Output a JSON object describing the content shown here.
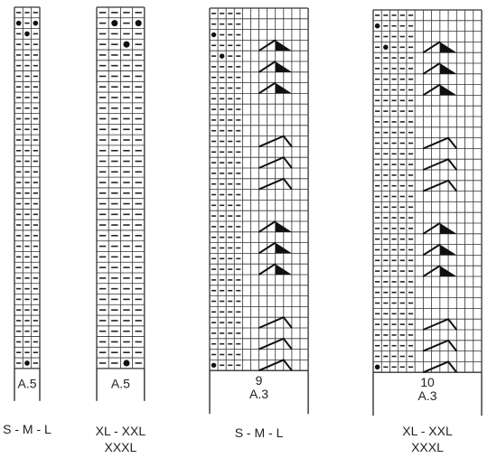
{
  "charts": [
    {
      "id": "c1",
      "cols": 3,
      "rows": 34,
      "dots": [
        [
          1,
          0
        ],
        [
          1,
          2
        ],
        [
          2,
          1
        ],
        [
          33,
          1
        ]
      ],
      "decs": [],
      "legend_lines": [
        "A.5"
      ],
      "size_lines": [
        "S - M - L"
      ]
    },
    {
      "id": "c2",
      "cols": 4,
      "rows": 34,
      "dots": [
        [
          1,
          1
        ],
        [
          1,
          3
        ],
        [
          3,
          2
        ],
        [
          33,
          2
        ]
      ],
      "decs": [],
      "legend_lines": [
        "A.5"
      ],
      "size_lines": [
        "XL - XXL",
        "XXXL"
      ]
    },
    {
      "id": "c3",
      "cols": 12,
      "rows": 34,
      "dots": [
        [
          2,
          0
        ],
        [
          4,
          1
        ],
        [
          33,
          0
        ]
      ],
      "decs": [
        [
          4,
          "left"
        ],
        [
          6,
          "left"
        ],
        [
          8,
          "left"
        ],
        [
          13,
          "right"
        ],
        [
          15,
          "right"
        ],
        [
          17,
          "right"
        ],
        [
          21,
          "left"
        ],
        [
          23,
          "left"
        ],
        [
          25,
          "left"
        ],
        [
          30,
          "right"
        ],
        [
          32,
          "right"
        ],
        [
          34,
          "right"
        ]
      ],
      "legend_lines": [
        "9",
        "A.3"
      ],
      "size_lines": [
        "S - M - L"
      ]
    },
    {
      "id": "c4",
      "cols": 13,
      "rows": 34,
      "dots": [
        [
          1,
          0
        ],
        [
          3,
          1
        ],
        [
          33,
          0
        ]
      ],
      "decs": [
        [
          4,
          "left"
        ],
        [
          6,
          "left"
        ],
        [
          8,
          "left"
        ],
        [
          13,
          "right"
        ],
        [
          15,
          "right"
        ],
        [
          17,
          "right"
        ],
        [
          21,
          "left"
        ],
        [
          23,
          "left"
        ],
        [
          25,
          "left"
        ],
        [
          30,
          "right"
        ],
        [
          32,
          "right"
        ],
        [
          34,
          "right"
        ]
      ],
      "legend_lines": [
        "10",
        "A.3"
      ],
      "size_lines": [
        "XL - XXL",
        "XXXL"
      ]
    }
  ]
}
